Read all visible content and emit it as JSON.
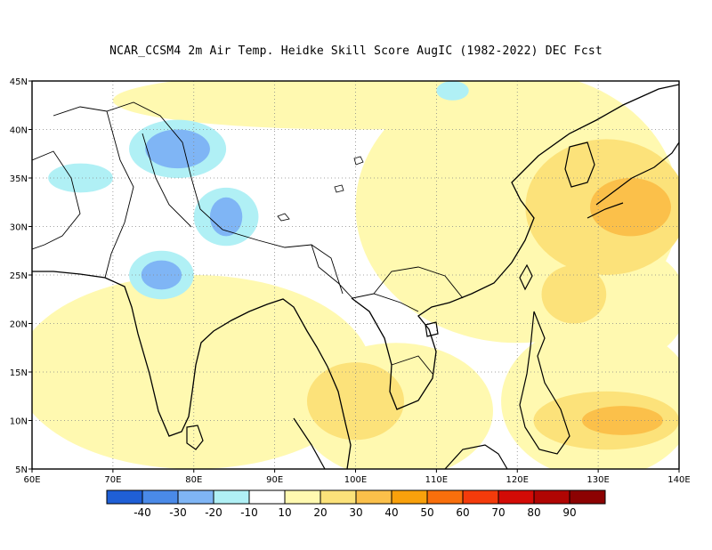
{
  "title": "NCAR_CCSM4  2m Air Temp. Heidke Skill Score AugIC (1982-2022) DEC Fcst",
  "map": {
    "lon_min": 60,
    "lon_max": 140,
    "lat_min": 5,
    "lat_max": 45,
    "lon_ticks": [
      {
        "value": 60,
        "label": "60E"
      },
      {
        "value": 70,
        "label": "70E"
      },
      {
        "value": 80,
        "label": "80E"
      },
      {
        "value": 90,
        "label": "90E"
      },
      {
        "value": 100,
        "label": "100E"
      },
      {
        "value": 110,
        "label": "110E"
      },
      {
        "value": 120,
        "label": "120E"
      },
      {
        "value": 130,
        "label": "130E"
      },
      {
        "value": 140,
        "label": "140E"
      }
    ],
    "lat_ticks": [
      {
        "value": 5,
        "label": "5N"
      },
      {
        "value": 10,
        "label": "10N"
      },
      {
        "value": 15,
        "label": "15N"
      },
      {
        "value": 20,
        "label": "20N"
      },
      {
        "value": 25,
        "label": "25N"
      },
      {
        "value": 30,
        "label": "30N"
      },
      {
        "value": 35,
        "label": "35N"
      },
      {
        "value": 40,
        "label": "40N"
      },
      {
        "value": 45,
        "label": "45N"
      }
    ],
    "gridlines": true
  },
  "colorbar": {
    "colors": [
      "#1f5fd6",
      "#4a8ae8",
      "#7fb5f5",
      "#b0f0f5",
      "#ffffff",
      "#fff9b0",
      "#fce27a",
      "#fbc04a",
      "#f9a10c",
      "#f96f0c",
      "#f43b0b",
      "#d30b06",
      "#b00503",
      "#8c0202"
    ],
    "labels": [
      "-40",
      "-30",
      "-20",
      "-10",
      "10",
      "20",
      "30",
      "40",
      "50",
      "60",
      "70",
      "80",
      "90"
    ]
  },
  "skill_regions": [
    {
      "level": "20",
      "color": "#fff9b0",
      "lon": 120,
      "lat": 32,
      "rlon": 20,
      "rlat": 14
    },
    {
      "level": "20",
      "color": "#fff9b0",
      "lon": 80,
      "lat": 15,
      "rlon": 22,
      "rlat": 10
    },
    {
      "level": "20",
      "color": "#fff9b0",
      "lon": 105,
      "lat": 11,
      "rlon": 12,
      "rlat": 7
    },
    {
      "level": "20",
      "color": "#fff9b0",
      "lon": 130,
      "lat": 12,
      "rlon": 12,
      "rlat": 8
    },
    {
      "level": "20",
      "color": "#fff9b0",
      "lon": 100,
      "lat": 43,
      "rlon": 30,
      "rlat": 3
    },
    {
      "level": "20",
      "color": "#fff9b0",
      "lon": 133,
      "lat": 22,
      "rlon": 8,
      "rlat": 6
    },
    {
      "level": "30",
      "color": "#fce27a",
      "lon": 131,
      "lat": 32,
      "rlon": 10,
      "rlat": 7
    },
    {
      "level": "30",
      "color": "#fce27a",
      "lon": 131,
      "lat": 10,
      "rlon": 9,
      "rlat": 3
    },
    {
      "level": "30",
      "color": "#fce27a",
      "lon": 100,
      "lat": 12,
      "rlon": 6,
      "rlat": 4
    },
    {
      "level": "30",
      "color": "#fce27a",
      "lon": 127,
      "lat": 23,
      "rlon": 4,
      "rlat": 3
    },
    {
      "level": "40",
      "color": "#fbc04a",
      "lon": 134,
      "lat": 32,
      "rlon": 5,
      "rlat": 3
    },
    {
      "level": "40",
      "color": "#fbc04a",
      "lon": 133,
      "lat": 10,
      "rlon": 5,
      "rlat": 1.5
    },
    {
      "level": "-10",
      "color": "#b0f0f5",
      "lon": 78,
      "lat": 38,
      "rlon": 6,
      "rlat": 3
    },
    {
      "level": "-10",
      "color": "#b0f0f5",
      "lon": 84,
      "lat": 31,
      "rlon": 4,
      "rlat": 3
    },
    {
      "level": "-10",
      "color": "#b0f0f5",
      "lon": 76,
      "lat": 25,
      "rlon": 4,
      "rlat": 2.5
    },
    {
      "level": "-10",
      "color": "#b0f0f5",
      "lon": 66,
      "lat": 35,
      "rlon": 4,
      "rlat": 1.5
    },
    {
      "level": "-10",
      "color": "#b0f0f5",
      "lon": 112,
      "lat": 44,
      "rlon": 2,
      "rlat": 1
    },
    {
      "level": "-20",
      "color": "#7fb5f5",
      "lon": 78,
      "lat": 38,
      "rlon": 4,
      "rlat": 2
    },
    {
      "level": "-20",
      "color": "#7fb5f5",
      "lon": 84,
      "lat": 31,
      "rlon": 2,
      "rlat": 2
    },
    {
      "level": "-20",
      "color": "#7fb5f5",
      "lon": 76,
      "lat": 25,
      "rlon": 2.5,
      "rlat": 1.5
    }
  ]
}
